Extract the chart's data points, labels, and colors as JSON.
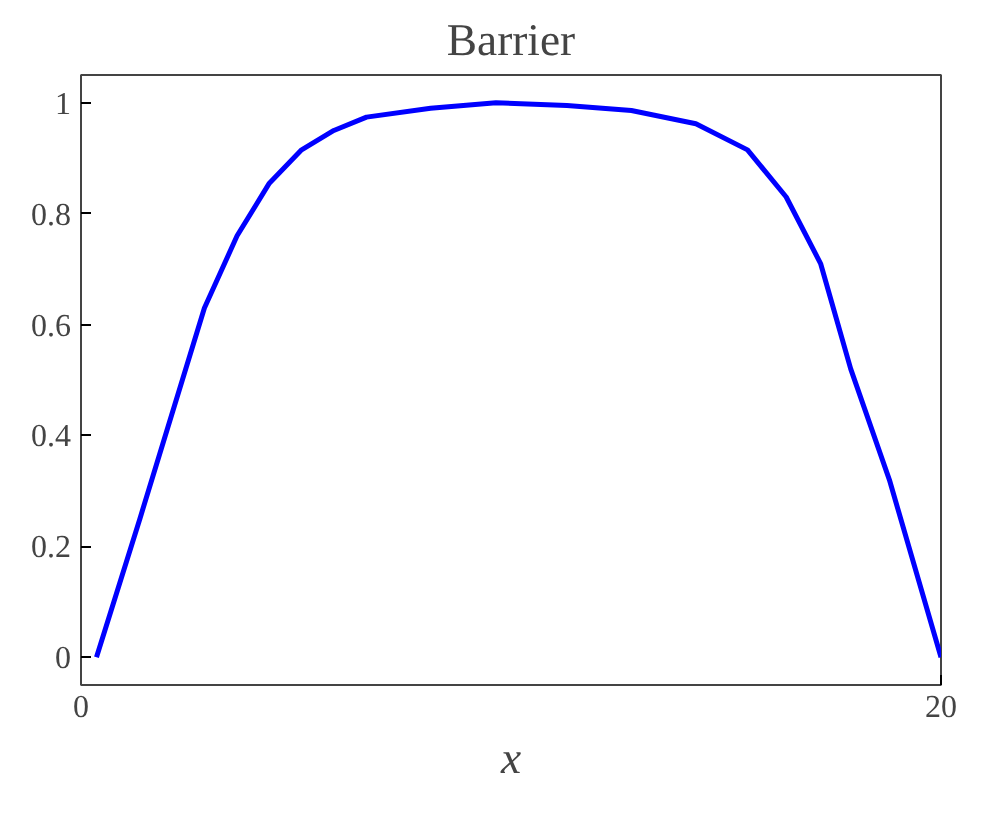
{
  "chart_data": {
    "type": "line",
    "title": "Barrier",
    "xlabel": "x",
    "x": [
      0.36,
      1.37,
      2.12,
      2.87,
      3.63,
      4.38,
      5.13,
      5.88,
      6.64,
      8.13,
      9.65,
      11.3,
      12.8,
      14.3,
      15.5,
      16.4,
      17.2,
      17.9,
      18.8,
      20
    ],
    "series": [
      {
        "color": "#0000ff",
        "values": [
          0,
          0.25,
          0.44,
          0.63,
          0.76,
          0.855,
          0.915,
          0.95,
          0.974,
          0.99,
          1.0,
          0.995,
          0.986,
          0.962,
          0.915,
          0.83,
          0.71,
          0.52,
          0.32,
          0
        ]
      }
    ],
    "xlim": [
      0,
      20
    ],
    "xticks": [
      0,
      20
    ],
    "ylim": [
      -0.05,
      1.05
    ],
    "yticks": [
      0,
      0.2,
      0.4,
      0.6,
      0.8,
      1
    ],
    "grid": false,
    "marker": "none",
    "line_style": "solid"
  }
}
